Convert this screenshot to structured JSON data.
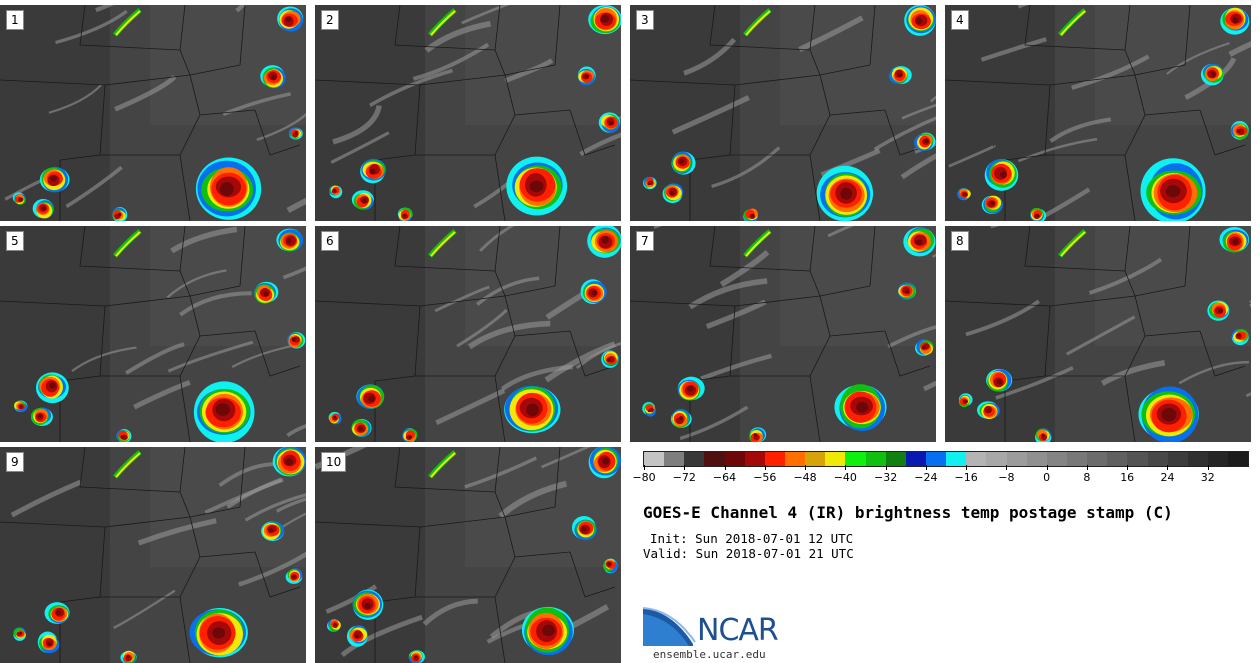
{
  "panels": [
    {
      "label": "1"
    },
    {
      "label": "2"
    },
    {
      "label": "3"
    },
    {
      "label": "4"
    },
    {
      "label": "5"
    },
    {
      "label": "6"
    },
    {
      "label": "7"
    },
    {
      "label": "8"
    },
    {
      "label": "9"
    },
    {
      "label": "10"
    }
  ],
  "colorbar": {
    "colors": [
      "#c4c4c4",
      "#7e7e7e",
      "#383838",
      "#501010",
      "#6e0808",
      "#a50808",
      "#ff2000",
      "#ff7000",
      "#d6a408",
      "#f2e808",
      "#10f010",
      "#10c010",
      "#108010",
      "#0818b0",
      "#0870f0",
      "#10f0f0",
      "#b4b4b4",
      "#a8a8a8",
      "#9c9c9c",
      "#909090",
      "#848484",
      "#787878",
      "#6c6c6c",
      "#606060",
      "#545454",
      "#484848",
      "#3c3c3c",
      "#303030",
      "#262626",
      "#1c1c1c"
    ],
    "ticks": [
      "−80",
      "−72",
      "−64",
      "−56",
      "−48",
      "−40",
      "−32",
      "−24",
      "−16",
      "−8",
      "0",
      "8",
      "16",
      "24",
      "32"
    ],
    "min": -80,
    "max": 40
  },
  "title": "GOES-E Channel 4 (IR) brightness temp postage stamp (C)",
  "init": "Init: Sun 2018-07-01 12 UTC",
  "valid": "Valid: Sun 2018-07-01 21 UTC",
  "logo": {
    "name": "NCAR",
    "url": "ensemble.ucar.edu"
  }
}
